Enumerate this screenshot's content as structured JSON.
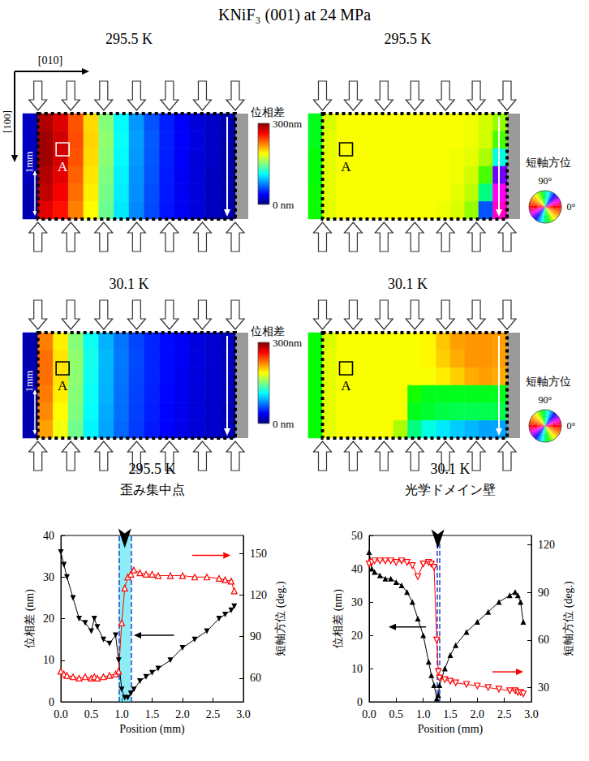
{
  "title": "KNiF₃ (001) at 24 MPa",
  "crystal_axes": [
    "[010]",
    "[100]"
  ],
  "scale_bar": "1mm",
  "region_label": "A",
  "chart_data": [
    {
      "type": "heatmap",
      "title": "295.5 K",
      "color": "jet",
      "tick_labels": false,
      "colorbar_title": "位相差",
      "color_range": [
        0,
        300
      ],
      "color_ticks": [
        {
          "value": 300,
          "label": "300nm"
        },
        {
          "value": 0,
          "label": "0 nm"
        }
      ],
      "cells": [
        [
          20,
          285,
          272,
          238,
          198,
          152,
          112,
          82,
          62,
          46,
          36,
          27,
          21,
          15
        ],
        [
          20,
          290,
          276,
          240,
          200,
          155,
          114,
          84,
          64,
          47,
          37,
          28,
          21,
          15
        ],
        [
          18,
          290,
          275,
          238,
          198,
          153,
          112,
          83,
          63,
          46,
          36,
          27,
          21,
          15
        ],
        [
          18,
          285,
          270,
          234,
          195,
          150,
          110,
          81,
          62,
          45,
          35,
          27,
          20,
          15
        ],
        [
          15,
          280,
          265,
          230,
          192,
          147,
          108,
          80,
          60,
          44,
          34,
          26,
          20,
          15
        ],
        [
          15,
          270,
          258,
          225,
          188,
          144,
          106,
          78,
          59,
          43,
          34,
          26,
          20,
          15
        ]
      ]
    },
    {
      "type": "heatmap",
      "title": "295.5 K",
      "color": "hue",
      "tick_labels": false,
      "colorbar_title": "短軸方位",
      "color_range": [
        0,
        180
      ],
      "color_ticks": [
        {
          "value": 90,
          "label": "90°"
        },
        {
          "value": 0,
          "label": "0°"
        }
      ],
      "cells": [
        [
          100,
          125,
          128,
          128,
          128,
          128,
          128,
          128,
          128,
          128,
          128,
          127,
          124,
          118
        ],
        [
          100,
          126,
          128,
          128,
          128,
          128,
          128,
          128,
          128,
          128,
          128,
          127,
          124,
          110
        ],
        [
          102,
          126,
          128,
          128,
          128,
          128,
          128,
          128,
          128,
          128,
          127,
          126,
          120,
          80
        ],
        [
          102,
          126,
          128,
          128,
          128,
          128,
          128,
          128,
          128,
          128,
          127,
          124,
          110,
          40
        ],
        [
          104,
          126,
          128,
          128,
          128,
          128,
          128,
          128,
          128,
          128,
          126,
          122,
          90,
          25
        ],
        [
          104,
          126,
          128,
          128,
          128,
          128,
          128,
          128,
          128,
          127,
          125,
          118,
          60,
          20
        ]
      ]
    },
    {
      "type": "heatmap",
      "title": "30.1 K",
      "color": "jet",
      "tick_labels": false,
      "colorbar_title": "位相差",
      "color_range": [
        0,
        300
      ],
      "color_ticks": [
        {
          "value": 300,
          "label": "300nm"
        },
        {
          "value": 0,
          "label": "0 nm"
        }
      ],
      "cells": [
        [
          15,
          225,
          192,
          152,
          116,
          90,
          72,
          58,
          48,
          40,
          34,
          28,
          24,
          20
        ],
        [
          15,
          230,
          195,
          155,
          118,
          92,
          73,
          59,
          48,
          40,
          34,
          28,
          24,
          20
        ],
        [
          15,
          230,
          195,
          154,
          117,
          91,
          72,
          58,
          48,
          40,
          33,
          28,
          23,
          19
        ],
        [
          14,
          226,
          192,
          152,
          115,
          90,
          71,
          57,
          47,
          39,
          33,
          27,
          23,
          19
        ],
        [
          14,
          222,
          188,
          150,
          113,
          88,
          70,
          56,
          46,
          38,
          32,
          27,
          22,
          18
        ],
        [
          14,
          215,
          184,
          146,
          110,
          86,
          68,
          55,
          45,
          37,
          31,
          26,
          22,
          18
        ]
      ]
    },
    {
      "type": "heatmap",
      "title": "30.1 K",
      "color": "hue",
      "tick_labels": false,
      "colorbar_title": "短軸方位",
      "color_range": [
        0,
        180
      ],
      "color_ticks": [
        {
          "value": 90,
          "label": "90°"
        },
        {
          "value": 0,
          "label": "0°"
        }
      ],
      "cells": [
        [
          103,
          125,
          128,
          128,
          128,
          128,
          128,
          128,
          130,
          140,
          148,
          150,
          150,
          148
        ],
        [
          103,
          126,
          128,
          128,
          128,
          128,
          128,
          128,
          130,
          138,
          145,
          150,
          150,
          148
        ],
        [
          103,
          126,
          128,
          128,
          128,
          128,
          128,
          128,
          128,
          132,
          138,
          145,
          148,
          145
        ],
        [
          103,
          126,
          128,
          128,
          128,
          128,
          128,
          105,
          100,
          100,
          100,
          100,
          100,
          100
        ],
        [
          103,
          126,
          128,
          128,
          128,
          128,
          128,
          100,
          98,
          96,
          95,
          95,
          95,
          95
        ],
        [
          103,
          126,
          128,
          128,
          128,
          128,
          120,
          90,
          80,
          75,
          72,
          70,
          68,
          68
        ]
      ]
    },
    {
      "type": "line",
      "title": "295.5 K",
      "annotation": "歪み集中点",
      "xlabel": "Position (mm)",
      "ylabel": "位相差 (nm)",
      "y2label": "短軸方位 (deg.)",
      "xlim": [
        0,
        3
      ],
      "xticks": [
        {
          "value": 0,
          "label": "0.0"
        },
        0.5,
        {
          "value": 1,
          "label": "1.0"
        },
        1.5,
        {
          "value": 2,
          "label": "2.0"
        },
        2.5,
        {
          "value": 3,
          "label": "3.0"
        }
      ],
      "ylim": [
        0,
        40
      ],
      "yticks": [
        0,
        10,
        20,
        30,
        40
      ],
      "y2lim": [
        43,
        163
      ],
      "y2ticks": [
        60,
        90,
        120,
        150
      ],
      "grid": false,
      "highlight": [
        0.95,
        1.15
      ],
      "markers": [
        0.95,
        1.15
      ],
      "pointer": [
        1.05,
        37
      ],
      "x": [
        0,
        0.05,
        0.1,
        0.2,
        0.3,
        0.4,
        0.5,
        0.55,
        0.6,
        0.7,
        0.8,
        0.9,
        0.95,
        1.0,
        1.05,
        1.1,
        1.15,
        1.2,
        1.3,
        1.4,
        1.5,
        1.6,
        1.8,
        2.0,
        2.2,
        2.4,
        2.6,
        2.7,
        2.8,
        2.85
      ],
      "series": [
        {
          "axis": "y",
          "color": "#000000",
          "marker": "triangle_down",
          "values": [
            36,
            33,
            30,
            25,
            20,
            19,
            17,
            20,
            18,
            15,
            14,
            16,
            10,
            3,
            1,
            1,
            2,
            3,
            5,
            6,
            7,
            8,
            10,
            13,
            15,
            17,
            20,
            21,
            22,
            23
          ]
        },
        {
          "axis": "y2",
          "color": "#ff0000",
          "marker": "triangle_up_open",
          "values": [
            65,
            63,
            62,
            61,
            60,
            61,
            60,
            61,
            60,
            61,
            62,
            63,
            65,
            100,
            125,
            133,
            135,
            138,
            136,
            135,
            135,
            134,
            134,
            134,
            133,
            133,
            132,
            131,
            130,
            123
          ]
        }
      ]
    },
    {
      "type": "line",
      "title": "30.1 K",
      "annotation": "光学ドメイン壁",
      "xlabel": "Position (mm)",
      "ylabel": "位相差 (nm)",
      "y2label": "短軸方位 (deg.)",
      "xlim": [
        0,
        3
      ],
      "xticks": [
        {
          "value": 0,
          "label": "0.0"
        },
        0.5,
        {
          "value": 1,
          "label": "1.0"
        },
        1.5,
        {
          "value": 2,
          "label": "2.0"
        },
        2.5,
        {
          "value": 3,
          "label": "3.0"
        }
      ],
      "ylim": [
        0,
        50
      ],
      "yticks": [
        0,
        10,
        20,
        30,
        40,
        50
      ],
      "y2lim": [
        21,
        126
      ],
      "y2ticks": [
        30,
        60,
        90,
        120
      ],
      "grid": false,
      "markers": [
        1.25,
        1.3
      ],
      "pointer": [
        1.27,
        46
      ],
      "x": [
        0,
        0.05,
        0.1,
        0.2,
        0.3,
        0.4,
        0.5,
        0.6,
        0.7,
        0.8,
        0.9,
        1.0,
        1.1,
        1.15,
        1.2,
        1.25,
        1.28,
        1.3,
        1.4,
        1.5,
        1.6,
        1.8,
        2.0,
        2.2,
        2.4,
        2.6,
        2.7,
        2.75,
        2.8,
        2.85
      ],
      "series": [
        {
          "axis": "y",
          "color": "#000000",
          "marker": "triangle_up",
          "values": [
            45,
            40,
            39,
            38,
            37,
            37,
            36,
            35,
            33,
            30,
            25,
            20,
            12,
            8,
            5,
            1,
            2,
            5,
            10,
            14,
            17,
            21,
            24,
            27,
            30,
            32,
            33,
            32,
            30,
            24
          ]
        },
        {
          "axis": "y2",
          "color": "#ff0000",
          "marker": "triangle_down_open",
          "values": [
            108,
            109,
            110,
            110,
            110,
            110,
            109,
            110,
            109,
            107,
            100,
            108,
            109,
            108,
            106,
            60,
            40,
            36,
            35,
            34,
            33,
            32,
            31,
            30,
            29,
            28,
            28,
            27,
            27,
            26
          ]
        }
      ]
    }
  ]
}
